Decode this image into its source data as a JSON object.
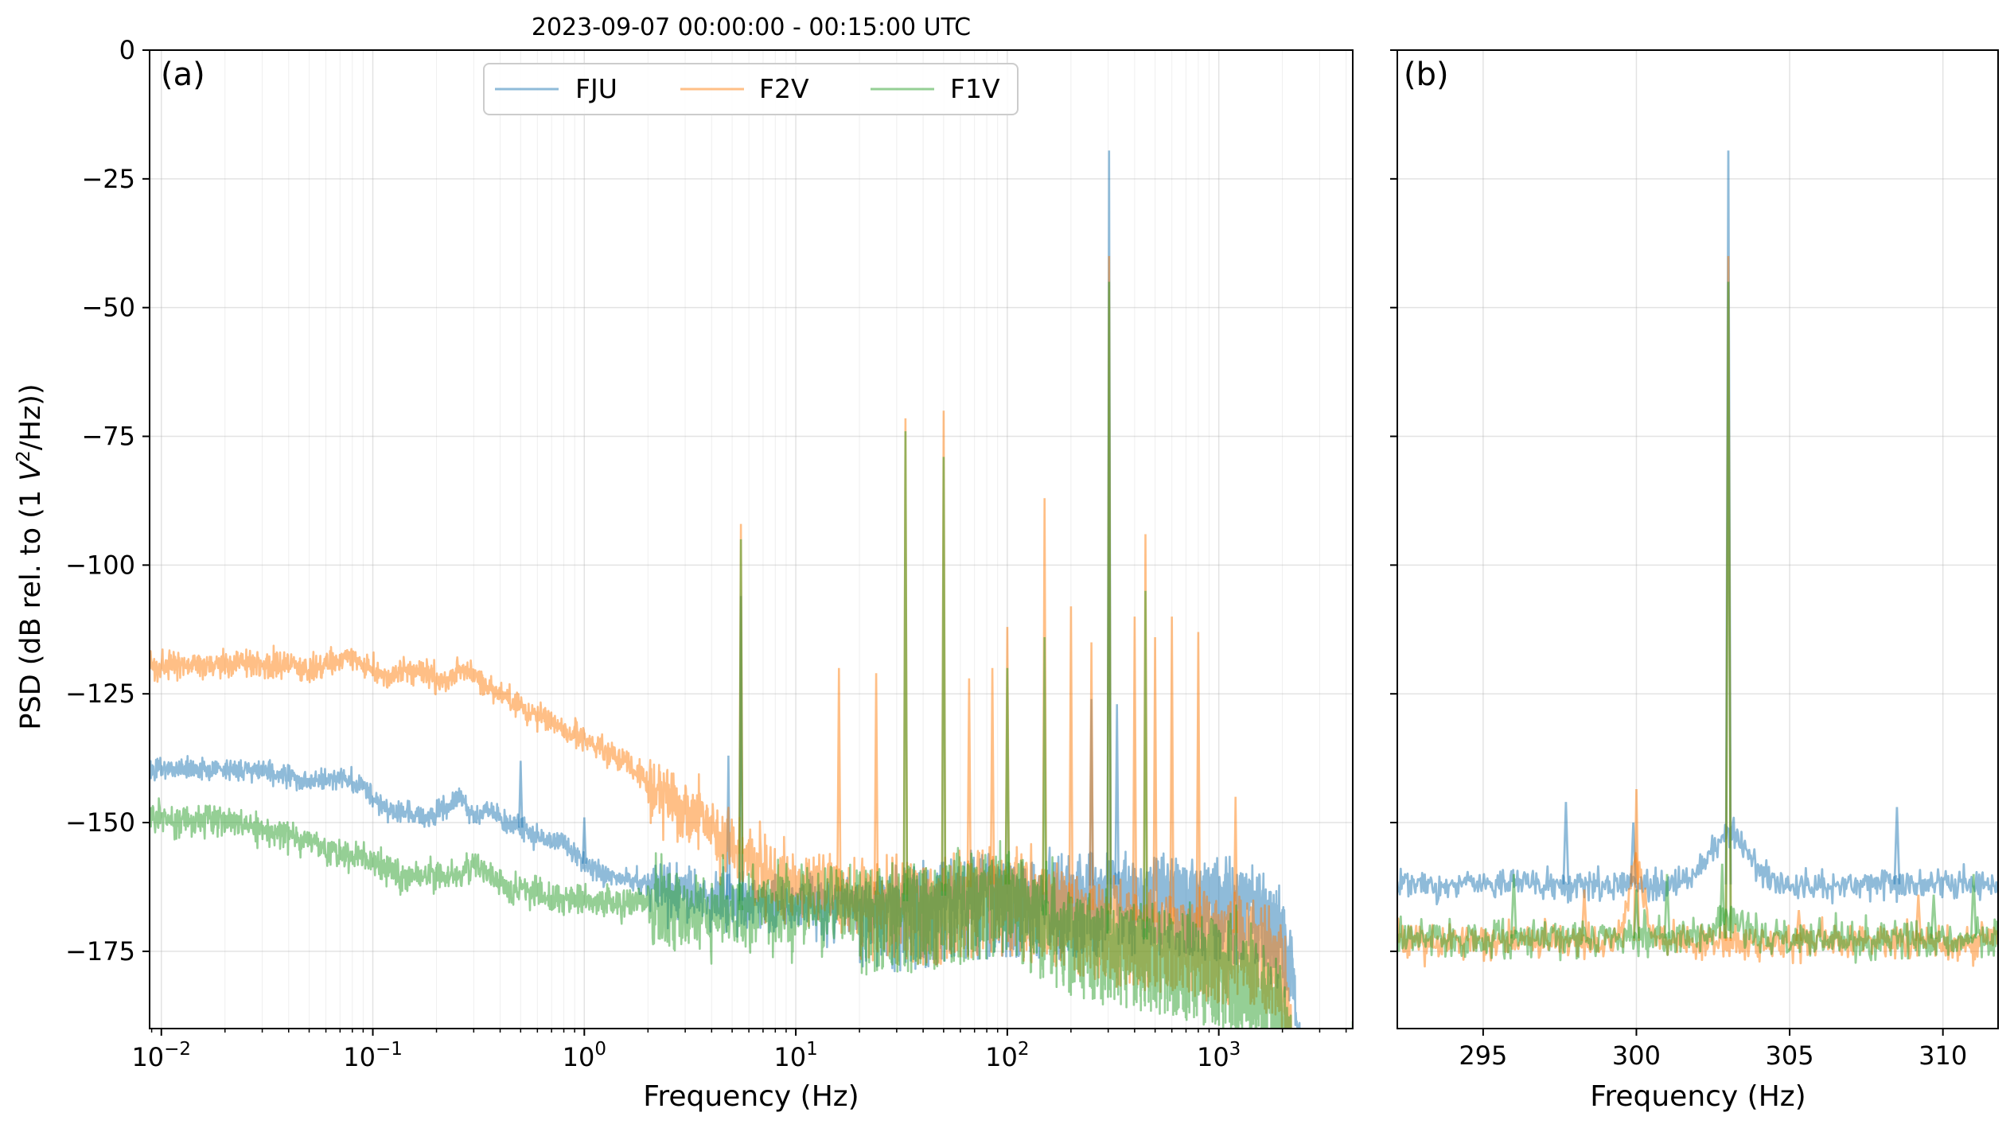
{
  "figure": {
    "title": "2023-09-07 00:00:00 - 00:15:00 UTC",
    "ylabel": "PSD (dB rel. to (1 V²/Hz))",
    "ylabel_parts": {
      "pre": "PSD (dB rel. to (1 ",
      "italic": "V",
      "sup": "2",
      "post": "/Hz))"
    },
    "colors": {
      "FJU": "#1f77b4",
      "F2V": "#ff7f0e",
      "F1V": "#2ca02c"
    },
    "line_alpha": 0.5
  },
  "chart_data": [
    {
      "type": "line",
      "panel_label": "(a)",
      "xlabel": "Frequency (Hz)",
      "ylabel": "PSD (dB rel. to (1 V²/Hz))",
      "xscale": "log",
      "xlim": [
        0.0088,
        4300
      ],
      "ylim": [
        -190,
        0
      ],
      "xticks": [
        {
          "value": 0.01,
          "base": "10",
          "exp": "−2"
        },
        {
          "value": 0.1,
          "base": "10",
          "exp": "−1"
        },
        {
          "value": 1,
          "base": "10",
          "exp": "0"
        },
        {
          "value": 10,
          "base": "10",
          "exp": "1"
        },
        {
          "value": 100,
          "base": "10",
          "exp": "2"
        },
        {
          "value": 1000,
          "base": "10",
          "exp": "3"
        }
      ],
      "yticks": [
        0,
        -25,
        -50,
        -75,
        -100,
        -125,
        -150,
        -175
      ],
      "ytick_labels": [
        "0",
        "−25",
        "−50",
        "−75",
        "−100",
        "−125",
        "−150",
        "−175"
      ],
      "grid": true,
      "legend": {
        "placement": "upper-center",
        "columns": 3,
        "entries": [
          "FJU",
          "F2V",
          "F1V"
        ]
      },
      "series": [
        {
          "name": "FJU",
          "baseline": [
            [
              0.009,
              -139.5
            ],
            [
              0.015,
              -139.5
            ],
            [
              0.033,
              -140
            ],
            [
              0.05,
              -142
            ],
            [
              0.07,
              -141
            ],
            [
              0.09,
              -143
            ],
            [
              0.11,
              -147
            ],
            [
              0.14,
              -148
            ],
            [
              0.18,
              -149
            ],
            [
              0.22,
              -147
            ],
            [
              0.26,
              -145
            ],
            [
              0.3,
              -149
            ],
            [
              0.35,
              -147
            ],
            [
              0.42,
              -150
            ],
            [
              0.5,
              -151
            ],
            [
              0.6,
              -153
            ],
            [
              0.8,
              -154
            ],
            [
              1.0,
              -158
            ],
            [
              1.5,
              -161
            ],
            [
              2,
              -162
            ],
            [
              3,
              -164
            ],
            [
              5,
              -165
            ],
            [
              8,
              -166
            ],
            [
              15,
              -166
            ],
            [
              30,
              -165
            ],
            [
              60,
              -163
            ],
            [
              100,
              -162
            ],
            [
              150,
              -163
            ],
            [
              300,
              -162
            ],
            [
              600,
              -162
            ],
            [
              1000,
              -163
            ],
            [
              1500,
              -164
            ],
            [
              2000,
              -170
            ],
            [
              2200,
              -176
            ],
            [
              2500,
              -200
            ]
          ],
          "noise_db": 2.5,
          "peaks": [
            [
              0.5,
              -138
            ],
            [
              1.0,
              -149
            ],
            [
              4.8,
              -137
            ],
            [
              5.5,
              -106
            ],
            [
              303,
              -19.5
            ],
            [
              250,
              -126
            ],
            [
              330,
              -127
            ]
          ]
        },
        {
          "name": "F2V",
          "baseline": [
            [
              0.009,
              -119.5
            ],
            [
              0.015,
              -119.5
            ],
            [
              0.025,
              -119
            ],
            [
              0.033,
              -119
            ],
            [
              0.05,
              -120
            ],
            [
              0.065,
              -119
            ],
            [
              0.08,
              -117.5
            ],
            [
              0.1,
              -121
            ],
            [
              0.12,
              -122
            ],
            [
              0.14,
              -120
            ],
            [
              0.18,
              -121
            ],
            [
              0.22,
              -123
            ],
            [
              0.27,
              -120
            ],
            [
              0.33,
              -123
            ],
            [
              0.4,
              -125
            ],
            [
              0.5,
              -128
            ],
            [
              0.6,
              -129
            ],
            [
              0.8,
              -132
            ],
            [
              1.0,
              -134
            ],
            [
              1.5,
              -138
            ],
            [
              2,
              -142
            ],
            [
              3,
              -148
            ],
            [
              4,
              -151
            ],
            [
              5,
              -154
            ],
            [
              6,
              -158
            ],
            [
              8,
              -162
            ],
            [
              10,
              -162
            ],
            [
              20,
              -164
            ],
            [
              40,
              -164
            ],
            [
              80,
              -162
            ],
            [
              100,
              -162
            ],
            [
              150,
              -164
            ],
            [
              250,
              -167
            ],
            [
              400,
              -169
            ],
            [
              700,
              -170
            ],
            [
              1000,
              -171
            ],
            [
              1500,
              -172
            ],
            [
              2000,
              -176
            ],
            [
              2300,
              -200
            ]
          ],
          "noise_db": 3.0,
          "peaks": [
            [
              5.5,
              -92
            ],
            [
              16,
              -120
            ],
            [
              24,
              -121
            ],
            [
              33,
              -71.5
            ],
            [
              50,
              -70
            ],
            [
              66,
              -122
            ],
            [
              85,
              -120
            ],
            [
              100,
              -112
            ],
            [
              150,
              -87
            ],
            [
              200,
              -108
            ],
            [
              250,
              -115
            ],
            [
              303,
              -40
            ],
            [
              400,
              -110
            ],
            [
              450,
              -94
            ],
            [
              500,
              -114
            ],
            [
              600,
              -110
            ],
            [
              800,
              -113
            ],
            [
              1200,
              -145
            ]
          ]
        },
        {
          "name": "F1V",
          "baseline": [
            [
              0.009,
              -149.5
            ],
            [
              0.015,
              -149.5
            ],
            [
              0.02,
              -149.5
            ],
            [
              0.033,
              -152
            ],
            [
              0.05,
              -153.5
            ],
            [
              0.06,
              -155
            ],
            [
              0.07,
              -156
            ],
            [
              0.09,
              -157
            ],
            [
              0.11,
              -158
            ],
            [
              0.14,
              -161
            ],
            [
              0.2,
              -160
            ],
            [
              0.25,
              -161
            ],
            [
              0.3,
              -158
            ],
            [
              0.35,
              -160
            ],
            [
              0.4,
              -162
            ],
            [
              0.5,
              -163
            ],
            [
              0.7,
              -165
            ],
            [
              1.0,
              -165
            ],
            [
              2,
              -166
            ],
            [
              5,
              -167
            ],
            [
              10,
              -167
            ],
            [
              20,
              -166
            ],
            [
              40,
              -165
            ],
            [
              70,
              -163
            ],
            [
              100,
              -162
            ],
            [
              150,
              -168
            ],
            [
              250,
              -171
            ],
            [
              500,
              -173
            ],
            [
              1000,
              -176
            ],
            [
              1500,
              -180
            ],
            [
              2000,
              -186
            ],
            [
              2300,
              -200
            ]
          ],
          "noise_db": 3.5,
          "peaks": [
            [
              5.5,
              -95
            ],
            [
              33,
              -74
            ],
            [
              50,
              -79
            ],
            [
              100,
              -120
            ],
            [
              150,
              -114
            ],
            [
              303,
              -45
            ],
            [
              450,
              -105
            ]
          ]
        }
      ]
    },
    {
      "type": "line",
      "panel_label": "(b)",
      "xlabel": "Frequency (Hz)",
      "xscale": "linear",
      "xlim": [
        292.2,
        311.8
      ],
      "ylim": [
        -190,
        0
      ],
      "xticks": [
        295,
        300,
        305,
        310
      ],
      "xtick_labels": [
        "295",
        "300",
        "305",
        "310"
      ],
      "yticks": [
        0,
        -25,
        -50,
        -75,
        -100,
        -125,
        -150,
        -175
      ],
      "grid": true,
      "series": [
        {
          "name": "FJU",
          "baseline": -162,
          "noise_db": 2.0,
          "bump": {
            "center": 303,
            "width": 0.6,
            "height": 10
          },
          "peaks": [
            [
              297.7,
              -146
            ],
            [
              299.9,
              -150
            ],
            [
              303,
              -19.5
            ],
            [
              308.5,
              -147
            ]
          ]
        },
        {
          "name": "F2V",
          "baseline": -173,
          "noise_db": 2.5,
          "bump": {
            "center": 300,
            "width": 0.25,
            "height": 14
          },
          "peaks": [
            [
              298.3,
              -163
            ],
            [
              300,
              -143.5
            ],
            [
              303,
              -40
            ],
            [
              305.3,
              -167
            ],
            [
              309.2,
              -164
            ]
          ]
        },
        {
          "name": "F1V",
          "baseline": -172.5,
          "noise_db": 2.5,
          "bump": {
            "center": 303,
            "width": 0.4,
            "height": 4
          },
          "peaks": [
            [
              296,
              -160
            ],
            [
              300,
              -163
            ],
            [
              301,
              -160
            ],
            [
              302.8,
              -158
            ],
            [
              303,
              -45
            ],
            [
              309.7,
              -164
            ],
            [
              311,
              -160
            ]
          ]
        }
      ]
    }
  ]
}
